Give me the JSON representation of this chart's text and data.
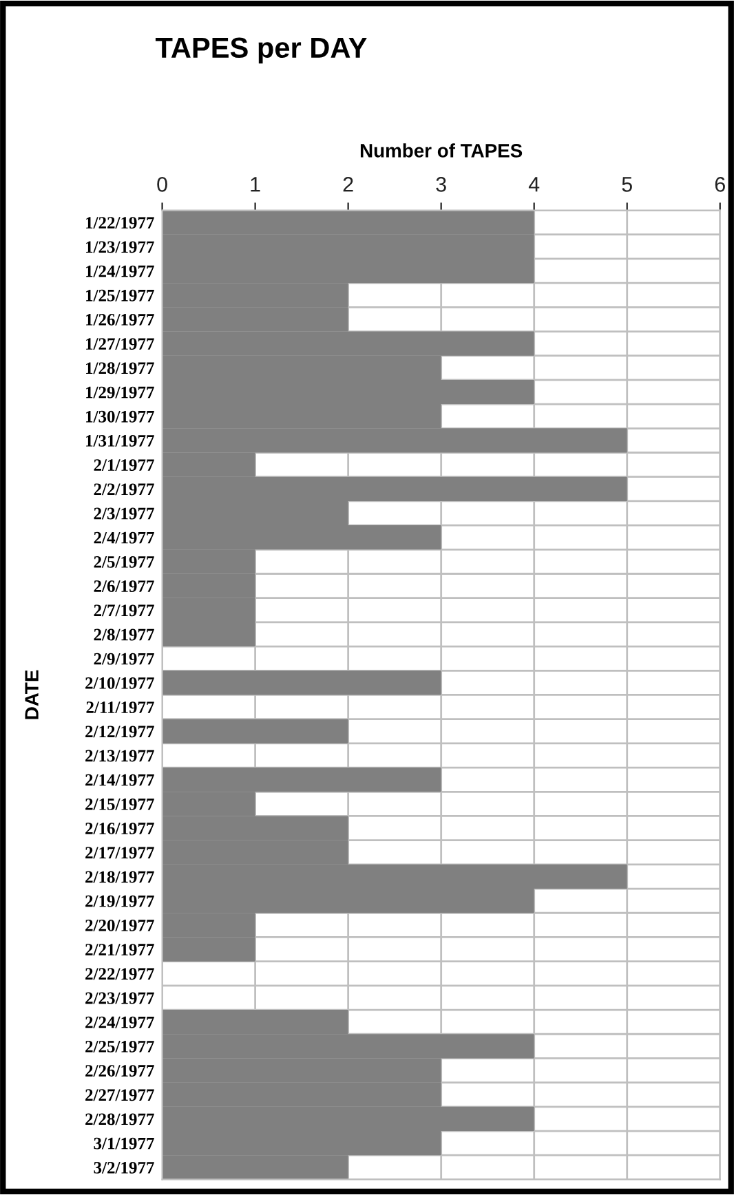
{
  "chart_data": {
    "type": "bar",
    "orientation": "horizontal",
    "title": "TAPES per DAY",
    "xlabel": "Number of TAPES",
    "ylabel": "DATE",
    "categories": [
      "1/22/1977",
      "1/23/1977",
      "1/24/1977",
      "1/25/1977",
      "1/26/1977",
      "1/27/1977",
      "1/28/1977",
      "1/29/1977",
      "1/30/1977",
      "1/31/1977",
      "2/1/1977",
      "2/2/1977",
      "2/3/1977",
      "2/4/1977",
      "2/5/1977",
      "2/6/1977",
      "2/7/1977",
      "2/8/1977",
      "2/9/1977",
      "2/10/1977",
      "2/11/1977",
      "2/12/1977",
      "2/13/1977",
      "2/14/1977",
      "2/15/1977",
      "2/16/1977",
      "2/17/1977",
      "2/18/1977",
      "2/19/1977",
      "2/20/1977",
      "2/21/1977",
      "2/22/1977",
      "2/23/1977",
      "2/24/1977",
      "2/25/1977",
      "2/26/1977",
      "2/27/1977",
      "2/28/1977",
      "3/1/1977",
      "3/2/1977"
    ],
    "values": [
      4,
      4,
      4,
      2,
      2,
      4,
      3,
      4,
      3,
      5,
      1,
      5,
      2,
      3,
      1,
      1,
      1,
      1,
      0,
      3,
      0,
      2,
      0,
      3,
      1,
      2,
      2,
      5,
      4,
      1,
      1,
      0,
      0,
      2,
      4,
      3,
      3,
      4,
      3,
      2
    ],
    "color": "#808080",
    "xlim": [
      0,
      6
    ],
    "xticks": [
      0,
      1,
      2,
      3,
      4,
      5,
      6
    ],
    "grid": true,
    "legend": false
  }
}
